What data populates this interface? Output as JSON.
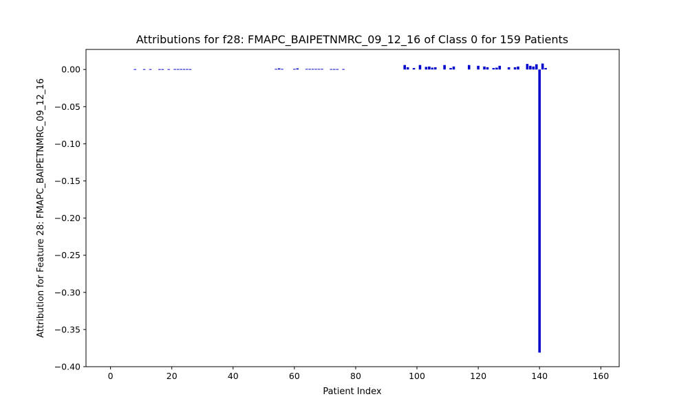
{
  "chart_data": {
    "type": "bar",
    "title": "Attributions for f28: FMAPC_BAIPETNMRC_09_12_16 of Class 0 for 159 Patients",
    "xlabel": "Patient Index",
    "ylabel": "Attribution for Feature 28: FMAPC_BAIPETNMRC_09_12_16",
    "xlim": [
      -8,
      166
    ],
    "ylim": [
      -0.4,
      0.027
    ],
    "xticks": [
      0,
      20,
      40,
      60,
      80,
      100,
      120,
      140,
      160
    ],
    "xtick_labels": [
      "0",
      "20",
      "40",
      "60",
      "80",
      "100",
      "120",
      "140",
      "160"
    ],
    "yticks": [
      0.0,
      -0.05,
      -0.1,
      -0.15,
      -0.2,
      -0.25,
      -0.3,
      -0.35,
      -0.4
    ],
    "ytick_labels": [
      "0.00",
      "−0.05",
      "−0.10",
      "−0.15",
      "−0.20",
      "−0.25",
      "−0.30",
      "−0.35",
      "−0.40"
    ],
    "bar_color": "#0000cc",
    "grid": false,
    "series": [
      {
        "x": [
          8,
          11,
          13,
          16,
          17,
          19,
          21,
          22,
          23,
          24,
          25,
          26,
          54,
          55,
          56,
          60,
          61,
          64,
          65,
          66,
          67,
          68,
          69,
          72,
          73,
          74,
          76,
          96,
          97,
          99,
          101,
          103,
          104,
          105,
          106,
          109,
          111,
          112,
          117,
          120,
          122,
          123,
          125,
          126,
          127,
          130,
          132,
          133,
          136,
          137,
          138,
          139,
          140,
          141,
          142
        ],
        "values": [
          0.0005,
          0.0005,
          0.0005,
          0.0005,
          0.0005,
          0.0005,
          0.0006,
          0.0006,
          0.0006,
          0.0006,
          0.0006,
          0.0005,
          0.0008,
          0.0015,
          0.0008,
          0.0008,
          0.0015,
          0.0008,
          0.0008,
          0.0008,
          0.0008,
          0.0008,
          0.0008,
          0.0006,
          0.0006,
          0.0006,
          0.0006,
          0.006,
          0.003,
          0.002,
          0.006,
          0.0035,
          0.004,
          0.0025,
          0.003,
          0.006,
          0.002,
          0.004,
          0.006,
          0.005,
          0.004,
          0.003,
          0.002,
          0.0025,
          0.005,
          0.003,
          0.003,
          0.004,
          0.0075,
          0.005,
          0.004,
          0.007,
          -0.381,
          0.008,
          0.002
        ]
      }
    ]
  }
}
